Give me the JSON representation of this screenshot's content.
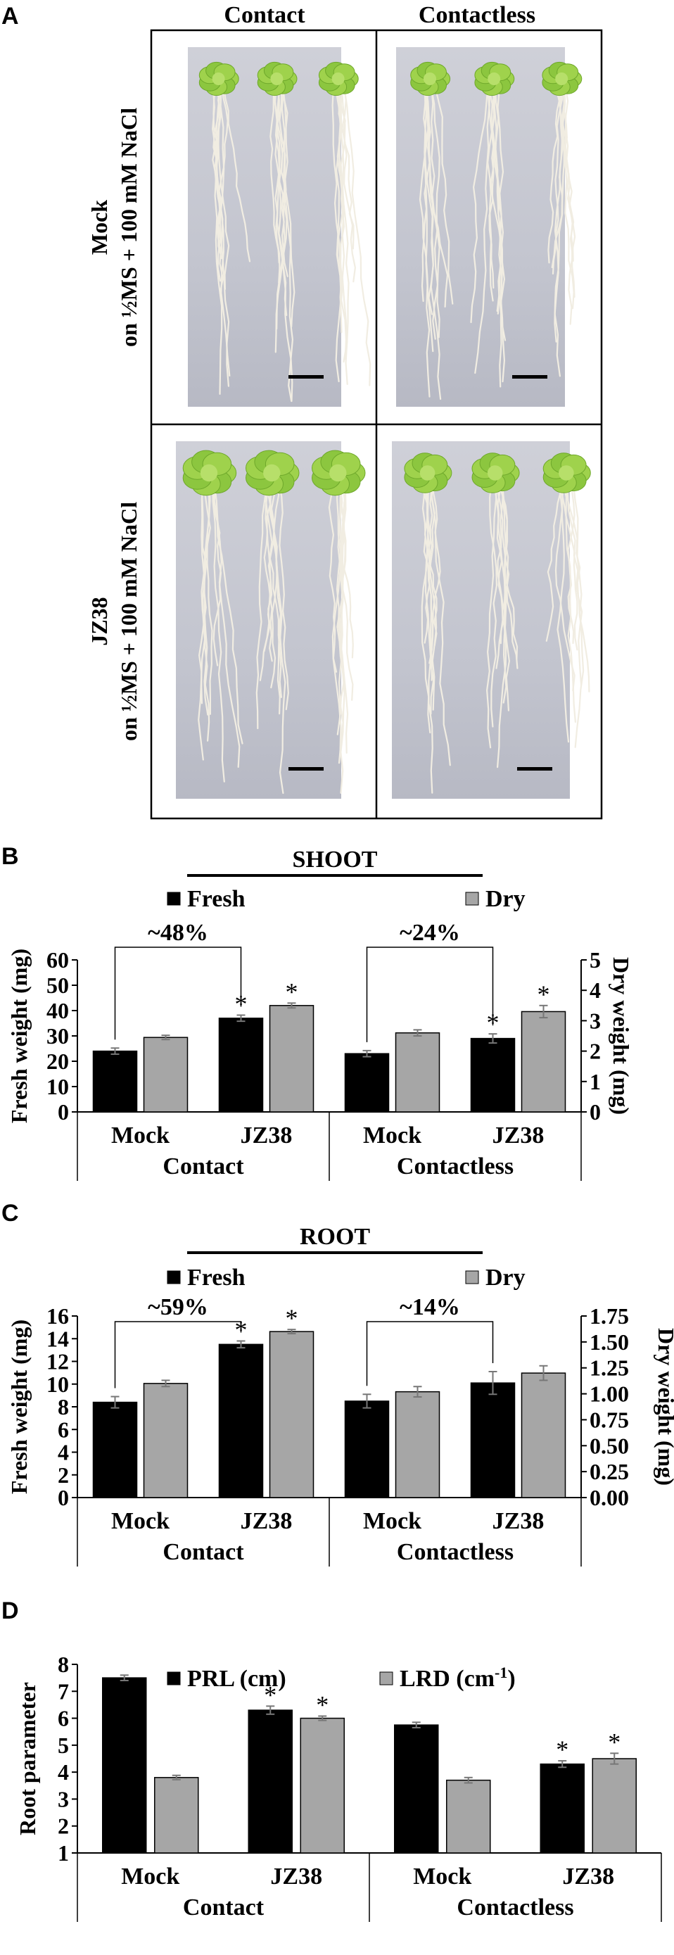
{
  "panel_a": {
    "label": "A",
    "columns": [
      "Contact",
      "Contactless"
    ],
    "rows": [
      {
        "line1": "Mock",
        "line2": "on ½MS + 100 mM NaCl"
      },
      {
        "line1": "JZ38",
        "line2": "on ½MS + 100 mM NaCl"
      }
    ]
  },
  "chart_data": [
    {
      "type": "bar",
      "panel": "B",
      "title": "SHOOT",
      "legend": [
        "Fresh",
        "Dry"
      ],
      "categories": [
        "Mock",
        "JZ38",
        "Mock",
        "JZ38"
      ],
      "groups": [
        "Contact",
        "Contactless"
      ],
      "ylabel": "Fresh weight (mg)",
      "ylabel_right": "Dry weight (mg)",
      "ylim": [
        0,
        60
      ],
      "ylim_right": [
        0,
        5
      ],
      "yticks": [
        0,
        10,
        20,
        30,
        40,
        50,
        60
      ],
      "yticks_right": [
        0,
        1,
        2,
        3,
        4,
        5
      ],
      "series": [
        {
          "name": "Fresh",
          "axis": "left",
          "color": "#000000",
          "values": [
            24,
            37,
            23,
            29
          ],
          "errors": [
            1.2,
            1.2,
            1.2,
            1.8
          ],
          "sig": [
            false,
            true,
            false,
            true
          ]
        },
        {
          "name": "Dry",
          "axis": "right",
          "color": "#a6a6a6",
          "values": [
            2.45,
            3.5,
            2.6,
            3.3
          ],
          "errors": [
            0.07,
            0.08,
            0.1,
            0.2
          ],
          "sig": [
            false,
            true,
            false,
            true
          ]
        }
      ],
      "brackets": [
        {
          "from": 0,
          "to": 1,
          "label": "~48%"
        },
        {
          "from": 2,
          "to": 3,
          "label": "~24%"
        }
      ]
    },
    {
      "type": "bar",
      "panel": "C",
      "title": "ROOT",
      "legend": [
        "Fresh",
        "Dry"
      ],
      "categories": [
        "Mock",
        "JZ38",
        "Mock",
        "JZ38"
      ],
      "groups": [
        "Contact",
        "Contactless"
      ],
      "ylabel": "Fresh weight (mg)",
      "ylabel_right": "Dry weight (mg)",
      "ylim": [
        0,
        16
      ],
      "ylim_right": [
        0,
        1.75
      ],
      "yticks": [
        0,
        2,
        4,
        6,
        8,
        10,
        12,
        14,
        16
      ],
      "yticks_right": [
        "0.00",
        "0.25",
        "0.50",
        "0.75",
        "1.00",
        "1.25",
        "1.50",
        "1.75"
      ],
      "series": [
        {
          "name": "Fresh",
          "axis": "left",
          "color": "#000000",
          "values": [
            8.4,
            13.5,
            8.5,
            10.1
          ],
          "errors": [
            0.5,
            0.3,
            0.6,
            1.0
          ],
          "sig": [
            false,
            true,
            false,
            false
          ]
        },
        {
          "name": "Dry",
          "axis": "right",
          "color": "#a6a6a6",
          "values": [
            1.1,
            1.6,
            1.02,
            1.2
          ],
          "errors": [
            0.03,
            0.02,
            0.05,
            0.07
          ],
          "sig": [
            false,
            true,
            false,
            false
          ]
        }
      ],
      "brackets": [
        {
          "from": 0,
          "to": 1,
          "label": "~59%"
        },
        {
          "from": 2,
          "to": 3,
          "label": "~14%"
        }
      ]
    },
    {
      "type": "bar",
      "panel": "D",
      "legend": [
        "PRL (cm)",
        "LRD (cm-1)"
      ],
      "categories": [
        "Mock",
        "JZ38",
        "Mock",
        "JZ38"
      ],
      "groups": [
        "Contact",
        "Contactless"
      ],
      "ylabel": "Root parameter",
      "ylim": [
        1,
        8
      ],
      "yticks": [
        1,
        2,
        3,
        4,
        5,
        6,
        7,
        8
      ],
      "series": [
        {
          "name": "PRL (cm)",
          "axis": "left",
          "color": "#000000",
          "values": [
            7.5,
            6.3,
            5.75,
            4.3
          ],
          "errors": [
            0.1,
            0.15,
            0.1,
            0.12
          ],
          "sig": [
            false,
            true,
            false,
            true
          ]
        },
        {
          "name": "LRD (cm-1)",
          "axis": "left",
          "color": "#a6a6a6",
          "values": [
            3.8,
            6.0,
            3.7,
            4.5
          ],
          "errors": [
            0.08,
            0.08,
            0.1,
            0.2
          ],
          "sig": [
            false,
            true,
            false,
            true
          ]
        }
      ]
    }
  ],
  "panel_labels": {
    "b": "B",
    "c": "C",
    "d": "D"
  },
  "sig_symbol": "*"
}
